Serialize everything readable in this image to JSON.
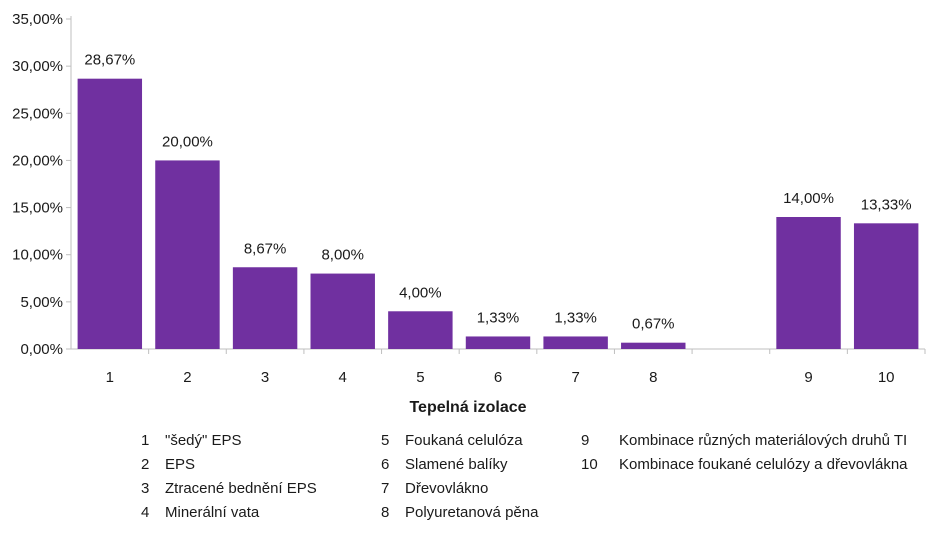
{
  "chart_data": {
    "type": "bar",
    "title": "",
    "xlabel": "Tepelná izolace",
    "ylabel": "",
    "ylim": [
      0,
      35
    ],
    "y_ticks": [
      "0,00%",
      "5,00%",
      "10,00%",
      "15,00%",
      "20,00%",
      "25,00%",
      "30,00%",
      "35,00%"
    ],
    "bar_color": "#7030A0",
    "categories": [
      "1",
      "2",
      "3",
      "4",
      "5",
      "6",
      "7",
      "8",
      "",
      "9",
      "10"
    ],
    "values": [
      28.67,
      20.0,
      8.67,
      8.0,
      4.0,
      1.33,
      1.33,
      0.67,
      null,
      14.0,
      13.33
    ],
    "data_labels": [
      "28,67%",
      "20,00%",
      "8,67%",
      "8,00%",
      "4,00%",
      "1,33%",
      "1,33%",
      "0,67%",
      "",
      "14,00%",
      "13,33%"
    ]
  },
  "legend": [
    {
      "num": "1",
      "text": "\"šedý\" EPS"
    },
    {
      "num": "2",
      "text": "EPS"
    },
    {
      "num": "3",
      "text": "Ztracené bednění EPS"
    },
    {
      "num": "4",
      "text": "Minerální vata"
    },
    {
      "num": "5",
      "text": "Foukaná celulóza"
    },
    {
      "num": "6",
      "text": "Slamené balíky"
    },
    {
      "num": "7",
      "text": "Dřevovlákno"
    },
    {
      "num": "8",
      "text": "Polyuretanová pěna"
    },
    {
      "num": "9",
      "text": "Kombinace různých materiálových druhů TI"
    },
    {
      "num": "10",
      "text": "Kombinace foukané celulózy a dřevovlákna"
    }
  ]
}
